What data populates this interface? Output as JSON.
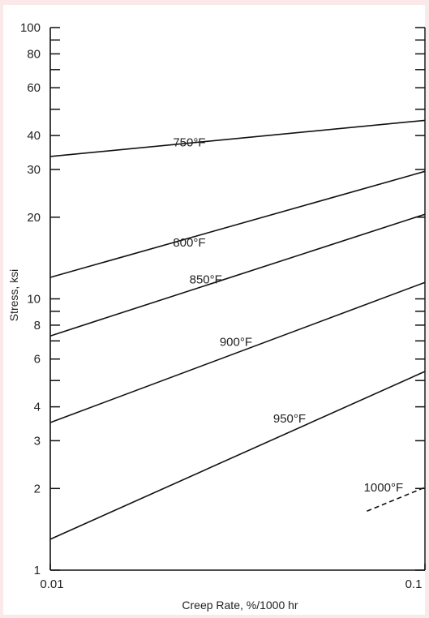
{
  "chart_data": {
    "type": "line",
    "title": "",
    "xlabel": "Creep Rate, %/1000 hr",
    "ylabel": "Stress, ksi",
    "xscale": "log",
    "yscale": "log",
    "xlim": [
      0.01,
      0.1
    ],
    "ylim": [
      1,
      100
    ],
    "grid": false,
    "x_tick_labels": [
      "0.01",
      "0.1"
    ],
    "y_ticks": [
      {
        "value": 1,
        "label": "1"
      },
      {
        "value": 2,
        "label": "2"
      },
      {
        "value": 3,
        "label": "3"
      },
      {
        "value": 4,
        "label": "4"
      },
      {
        "value": 6,
        "label": "6"
      },
      {
        "value": 8,
        "label": "8"
      },
      {
        "value": 10,
        "label": "10"
      },
      {
        "value": 20,
        "label": "20"
      },
      {
        "value": 30,
        "label": "30"
      },
      {
        "value": 40,
        "label": "40"
      },
      {
        "value": 60,
        "label": "60"
      },
      {
        "value": 80,
        "label": "80"
      },
      {
        "value": 100,
        "label": "100"
      }
    ],
    "series": [
      {
        "name": "750°F",
        "style": "solid",
        "x": [
          0.01,
          0.1
        ],
        "y": [
          33.5,
          45.5
        ],
        "label_at": [
          0.0235,
          36.5
        ]
      },
      {
        "name": "800°F",
        "style": "solid",
        "x": [
          0.01,
          0.1
        ],
        "y": [
          12.0,
          29.5
        ],
        "label_at": [
          0.0235,
          15.6
        ]
      },
      {
        "name": "850°F",
        "style": "solid",
        "x": [
          0.01,
          0.1
        ],
        "y": [
          7.3,
          20.5
        ],
        "label_at": [
          0.026,
          11.4
        ]
      },
      {
        "name": "900°F",
        "style": "solid",
        "x": [
          0.01,
          0.1
        ],
        "y": [
          3.5,
          11.5
        ],
        "label_at": [
          0.0313,
          6.7
        ]
      },
      {
        "name": "950°F",
        "style": "solid",
        "x": [
          0.01,
          0.1
        ],
        "y": [
          1.3,
          5.4
        ],
        "label_at": [
          0.0435,
          3.5
        ]
      },
      {
        "name": "1000°F",
        "style": "dashed",
        "x": [
          0.07,
          0.1
        ],
        "y": [
          1.65,
          2.02
        ],
        "label_at": [
          0.0775,
          1.95
        ]
      }
    ]
  }
}
